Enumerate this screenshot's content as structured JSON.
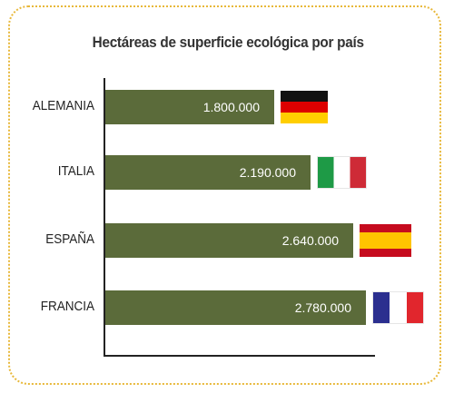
{
  "chart_data": {
    "type": "bar",
    "orientation": "horizontal",
    "title": "Hectáreas de superficie ecológica por país",
    "categories": [
      "ALEMANIA",
      "ITALIA",
      "ESPAÑA",
      "FRANCIA"
    ],
    "values": [
      1800000,
      2190000,
      2640000,
      2780000
    ],
    "value_labels": [
      "1.800.000",
      "2.190.000",
      "2.640.000",
      "2.780.000"
    ],
    "flag_icons": [
      "germany-flag-icon",
      "italy-flag-icon",
      "spain-flag-icon",
      "france-flag-icon"
    ],
    "bar_color": "#5b6b3a",
    "frame_color": "#e8b83a"
  }
}
